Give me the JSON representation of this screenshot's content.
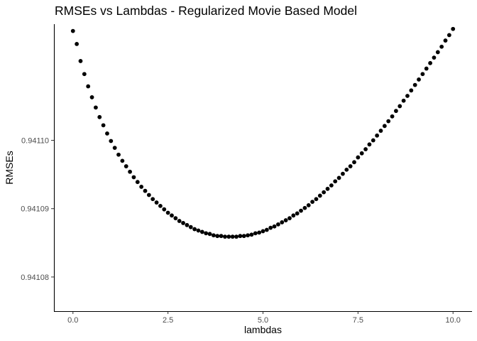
{
  "chart_data": {
    "type": "scatter",
    "title": "RMSEs vs Lambdas - Regularized Movie Based Model",
    "xlabel": "lambdas",
    "ylabel": "RMSEs",
    "xlim": [
      -0.5,
      10.5
    ],
    "ylim": [
      0.941075,
      0.941117
    ],
    "xticks": [
      0,
      2.5,
      5,
      7.5,
      10
    ],
    "xtick_labels": [
      "0.0",
      "2.5",
      "5.0",
      "7.5",
      "10.0"
    ],
    "yticks": [
      0.94108,
      0.94109,
      0.9411
    ],
    "ytick_labels": [
      "0.94108",
      "0.94109",
      "0.94110"
    ],
    "grid": false,
    "point_color": "#000000",
    "series": [
      {
        "x": [
          0.0,
          0.1,
          0.2,
          0.3,
          0.4,
          0.5,
          0.6,
          0.7,
          0.8,
          0.9,
          1.0,
          1.1,
          1.2,
          1.3,
          1.4,
          1.5,
          1.6,
          1.7,
          1.8,
          1.9,
          2.0,
          2.1,
          2.2,
          2.3,
          2.4,
          2.5,
          2.6,
          2.7,
          2.8,
          2.9,
          3.0,
          3.1,
          3.2,
          3.3,
          3.4,
          3.5,
          3.6,
          3.7,
          3.8,
          3.9,
          4.0,
          4.1,
          4.2,
          4.3,
          4.4,
          4.5,
          4.6,
          4.7,
          4.8,
          4.9,
          5.0,
          5.1,
          5.2,
          5.3,
          5.4,
          5.5,
          5.6,
          5.7,
          5.8,
          5.9,
          6.0,
          6.1,
          6.2,
          6.3,
          6.4,
          6.5,
          6.6,
          6.7,
          6.8,
          6.9,
          7.0,
          7.1,
          7.2,
          7.3,
          7.4,
          7.5,
          7.6,
          7.7,
          7.8,
          7.9,
          8.0,
          8.1,
          8.2,
          8.3,
          8.4,
          8.5,
          8.6,
          8.7,
          8.8,
          8.9,
          9.0,
          9.1,
          9.2,
          9.3,
          9.4,
          9.5,
          9.6,
          9.7,
          9.8,
          9.9,
          10.0
        ],
        "y": [
          0.941116,
          0.9411141,
          0.9411116,
          0.9411097,
          0.9411079,
          0.9411063,
          0.9411048,
          0.9411034,
          0.9411022,
          0.941101,
          0.9410999,
          0.9410989,
          0.9410979,
          0.941097,
          0.9410962,
          0.9410954,
          0.9410946,
          0.9410939,
          0.9410932,
          0.9410926,
          0.941092,
          0.9410914,
          0.9410909,
          0.9410904,
          0.9410899,
          0.9410894,
          0.941089,
          0.9410886,
          0.9410882,
          0.9410879,
          0.9410876,
          0.9410873,
          0.941087,
          0.9410868,
          0.9410866,
          0.9410864,
          0.9410863,
          0.9410861,
          0.941086,
          0.941086,
          0.9410859,
          0.9410859,
          0.9410859,
          0.9410859,
          0.941086,
          0.941086,
          0.9410861,
          0.9410862,
          0.9410864,
          0.9410865,
          0.9410867,
          0.9410869,
          0.9410872,
          0.9410874,
          0.9410877,
          0.941088,
          0.9410883,
          0.9410886,
          0.941089,
          0.9410893,
          0.9410897,
          0.9410901,
          0.9410905,
          0.941091,
          0.9410914,
          0.9410919,
          0.9410924,
          0.9410929,
          0.9410934,
          0.941094,
          0.9410945,
          0.9410951,
          0.9410957,
          0.9410962,
          0.9410968,
          0.9410975,
          0.9410981,
          0.9410987,
          0.9410994,
          0.9411,
          0.9411007,
          0.9411014,
          0.9411021,
          0.9411028,
          0.9411035,
          0.9411043,
          0.941105,
          0.9411058,
          0.9411065,
          0.9411073,
          0.9411081,
          0.9411089,
          0.9411097,
          0.9411105,
          0.9411113,
          0.9411121,
          0.9411129,
          0.9411137,
          0.9411146,
          0.9411154,
          0.9411163
        ]
      }
    ]
  }
}
